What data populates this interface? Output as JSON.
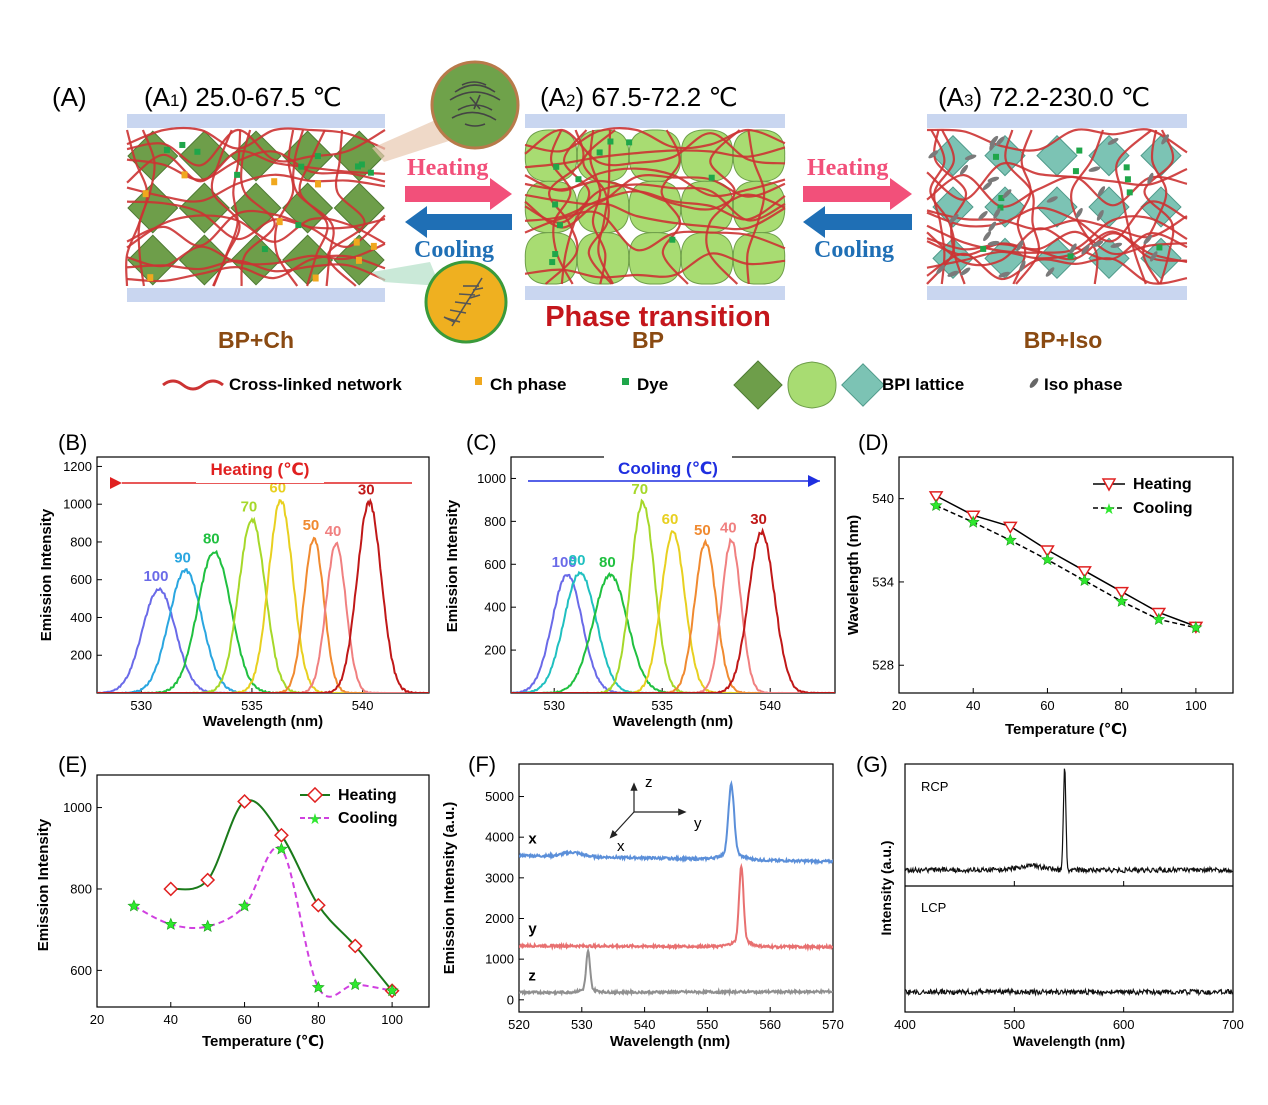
{
  "panel_a": {
    "label": "(A)",
    "states": [
      {
        "sub": "(A",
        "idx": "1",
        "range": ") 25.0-67.5 ℃",
        "name": "BP+Ch"
      },
      {
        "sub": "(A",
        "idx": "2",
        "range": ") 67.5-72.2 ℃",
        "name": "BP"
      },
      {
        "sub": "(A",
        "idx": "3",
        "range": ") 72.2-230.0 ℃",
        "name": "BP+Iso"
      }
    ],
    "heating": "Heating",
    "cooling": "Cooling",
    "transition": "Phase transition",
    "legend": {
      "network": "Cross-linked network",
      "ch": "Ch phase",
      "dye": "Dye",
      "bpi": "BPI lattice",
      "iso": "Iso phase"
    },
    "colors": {
      "network": "#cc3333",
      "ch": "#f0a81e",
      "dye": "#1fa64a",
      "bp_dark": "#6e9e4a",
      "bp_light": "#a8dc72",
      "bp_teal": "#7cc3b4",
      "glass": "#c9d6f0",
      "heating": "#f2507a",
      "cooling": "#1f6fb5",
      "transition": "#c4161c",
      "state_label": "#8a4a12"
    }
  },
  "chart_data": [
    {
      "panel": "(B)",
      "type": "line",
      "xlabel": "Wavelength (nm)",
      "ylabel": "Emission Intensity",
      "xlim": [
        528,
        543
      ],
      "ylim": [
        0,
        1250
      ],
      "xticks": [
        530,
        535,
        540
      ],
      "yticks": [
        200,
        400,
        600,
        800,
        1000,
        1200
      ],
      "annotation": "Heating (℃)",
      "arrow": "left",
      "series": [
        {
          "name": "100",
          "center": 530.8,
          "width": 0.75,
          "peak": 550,
          "color": "#6a6ae8"
        },
        {
          "name": "90",
          "center": 532.0,
          "width": 0.75,
          "peak": 650,
          "color": "#2aa6e0"
        },
        {
          "name": "80",
          "center": 533.3,
          "width": 0.75,
          "peak": 750,
          "color": "#20c040"
        },
        {
          "name": "70",
          "center": 535.0,
          "width": 0.6,
          "peak": 920,
          "color": "#a6d82a"
        },
        {
          "name": "60",
          "center": 536.3,
          "width": 0.55,
          "peak": 1020,
          "color": "#e8d020"
        },
        {
          "name": "50",
          "center": 537.8,
          "width": 0.45,
          "peak": 820,
          "color": "#f08a30"
        },
        {
          "name": "40",
          "center": 538.8,
          "width": 0.45,
          "peak": 790,
          "color": "#f08080"
        },
        {
          "name": "30",
          "center": 540.3,
          "width": 0.55,
          "peak": 1010,
          "color": "#c01818"
        }
      ]
    },
    {
      "panel": "(C)",
      "type": "line",
      "xlabel": "Wavelength (nm)",
      "ylabel": "Emission Intensity",
      "xlim": [
        528,
        543
      ],
      "ylim": [
        0,
        1100
      ],
      "xticks": [
        530,
        535,
        540
      ],
      "yticks": [
        200,
        400,
        600,
        800,
        1000
      ],
      "annotation": "Cooling (℃)",
      "arrow": "right",
      "series": [
        {
          "name": "100",
          "center": 530.6,
          "width": 0.7,
          "peak": 550,
          "color": "#6a6ae8"
        },
        {
          "name": "90",
          "center": 531.2,
          "width": 0.75,
          "peak": 560,
          "color": "#20c0c0"
        },
        {
          "name": "80",
          "center": 532.6,
          "width": 0.8,
          "peak": 550,
          "color": "#20c040"
        },
        {
          "name": "70",
          "center": 534.1,
          "width": 0.55,
          "peak": 890,
          "color": "#a6d82a"
        },
        {
          "name": "60",
          "center": 535.5,
          "width": 0.55,
          "peak": 750,
          "color": "#e8d020"
        },
        {
          "name": "50",
          "center": 537.0,
          "width": 0.5,
          "peak": 700,
          "color": "#f08a30"
        },
        {
          "name": "40",
          "center": 538.2,
          "width": 0.45,
          "peak": 710,
          "color": "#f08080"
        },
        {
          "name": "30",
          "center": 539.6,
          "width": 0.6,
          "peak": 750,
          "color": "#c01818"
        }
      ]
    },
    {
      "panel": "(D)",
      "type": "line",
      "xlabel": "Temperature (℃)",
      "ylabel": "Wavelength (nm)",
      "xlim": [
        20,
        110
      ],
      "ylim": [
        526,
        543
      ],
      "xticks": [
        20,
        40,
        60,
        80,
        100
      ],
      "yticks": [
        528,
        534,
        540
      ],
      "series": [
        {
          "name": "Heating",
          "x": [
            30,
            40,
            50,
            60,
            70,
            80,
            90,
            100
          ],
          "y": [
            540.2,
            538.8,
            538.0,
            536.3,
            534.8,
            533.3,
            531.8,
            530.8
          ]
        },
        {
          "name": "Cooling",
          "x": [
            30,
            40,
            50,
            60,
            70,
            80,
            90,
            100
          ],
          "y": [
            539.5,
            538.3,
            537.0,
            535.6,
            534.1,
            532.6,
            531.3,
            530.7
          ]
        }
      ]
    },
    {
      "panel": "(E)",
      "type": "line",
      "xlabel": "Temperature (℃)",
      "ylabel": "Emission Intensity",
      "xlim": [
        20,
        110
      ],
      "ylim": [
        510,
        1080
      ],
      "xticks": [
        20,
        40,
        60,
        80,
        100
      ],
      "yticks": [
        600,
        800,
        1000
      ],
      "series": [
        {
          "name": "Heating",
          "x": [
            40,
            50,
            60,
            70,
            80,
            90,
            100
          ],
          "y": [
            800,
            822,
            1015,
            932,
            760,
            660,
            550
          ]
        },
        {
          "name": "Cooling",
          "x": [
            30,
            40,
            50,
            60,
            70,
            80,
            90,
            100
          ],
          "y": [
            758,
            713,
            708,
            758,
            898,
            558,
            565,
            550
          ]
        }
      ]
    },
    {
      "panel": "(F)",
      "type": "line",
      "xlabel": "Wavelength (nm)",
      "ylabel": "Emission Intensity (a.u.)",
      "xlim": [
        520,
        570
      ],
      "ylim": [
        -300,
        5800
      ],
      "xticks": [
        520,
        530,
        540,
        550,
        560,
        570
      ],
      "yticks": [
        0,
        1000,
        2000,
        3000,
        4000,
        5000
      ],
      "axes_inset": [
        "z",
        "y",
        "x"
      ],
      "series": [
        {
          "name": "x",
          "baseline": 3550,
          "end": 3400,
          "peak_center": 553.8,
          "peak_height": 1700,
          "peak_width": 0.45,
          "small_center": 528.5,
          "small_height": 100,
          "color": "#5b8fd9"
        },
        {
          "name": "y",
          "baseline": 1330,
          "end": 1300,
          "peak_center": 555.4,
          "peak_height": 1830,
          "peak_width": 0.35,
          "small_center": 0,
          "small_height": 0,
          "color": "#e87070"
        },
        {
          "name": "z",
          "baseline": 180,
          "end": 200,
          "peak_center": 531.0,
          "peak_height": 930,
          "peak_width": 0.3,
          "small_center": 0,
          "small_height": 0,
          "color": "#909090"
        }
      ]
    },
    {
      "panel": "(G)",
      "type": "line",
      "xlabel": "Wavelength (nm)",
      "ylabel": "Intensity (a.u.)",
      "xlim": [
        400,
        700
      ],
      "xticks": [
        400,
        500,
        600,
        700
      ],
      "series": [
        {
          "name": "RCP",
          "peak_center": 546,
          "peak_height": 0.84
        },
        {
          "name": "LCP",
          "peak_center": 0,
          "peak_height": 0
        }
      ]
    }
  ]
}
